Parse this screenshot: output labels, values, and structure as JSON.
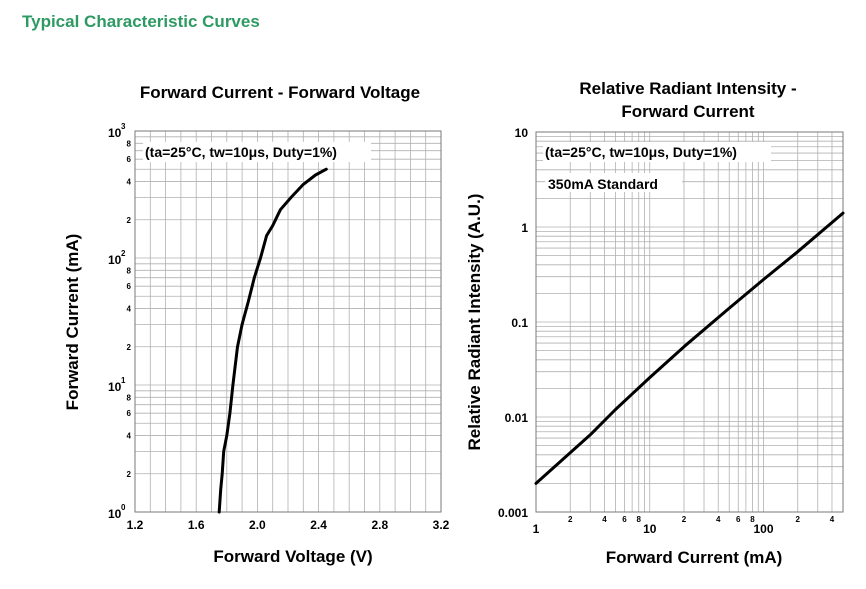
{
  "heading": "Typical Characteristic Curves",
  "colors": {
    "heading": "#2e9a63",
    "curve": "#000000",
    "grid": "#b0b0b0"
  },
  "chart_data": [
    {
      "type": "line",
      "title": "Forward Current - Forward Voltage",
      "xlabel": "Forward Voltage (V)",
      "ylabel": "Forward Current (mA)",
      "xscale": "linear",
      "yscale": "log",
      "xlim": [
        1.2,
        3.2
      ],
      "ylim": [
        1,
        1000
      ],
      "grid": true,
      "annotation": "(ta=25°C, tw=10μs, Duty=1%)",
      "xticks": [
        "1.2",
        "1.6",
        "2.0",
        "2.4",
        "2.8",
        "3.2"
      ],
      "yticks_major": [
        {
          "base": "10",
          "exp": "0"
        },
        {
          "base": "10",
          "exp": "1"
        },
        {
          "base": "10",
          "exp": "2"
        },
        {
          "base": "10",
          "exp": "3"
        }
      ],
      "yticks_minor": [
        "2",
        "4",
        "6",
        "8"
      ],
      "series": [
        {
          "x": [
            1.75,
            1.76,
            1.77,
            1.78,
            1.8,
            1.82,
            1.84,
            1.87,
            1.9,
            1.94,
            1.98,
            2.02,
            2.06,
            2.1,
            2.15,
            2.22,
            2.3,
            2.38,
            2.45
          ],
          "y": [
            1,
            1.5,
            2,
            3,
            4,
            6,
            10,
            20,
            30,
            45,
            70,
            100,
            150,
            180,
            240,
            300,
            380,
            450,
            500
          ]
        }
      ]
    },
    {
      "type": "line",
      "title": "Relative Radiant Intensity - Forward Current",
      "xlabel": "Forward Current (mA)",
      "ylabel": "Relative Radiant Intensity (A.U.)",
      "xscale": "log",
      "yscale": "log",
      "xlim": [
        1,
        500
      ],
      "ylim": [
        0.001,
        10
      ],
      "grid": true,
      "annotation": "(ta=25°C, tw=10μs, Duty=1%)",
      "annotation2": "350mA Standard",
      "xticks_major": [
        "1",
        "10",
        "100"
      ],
      "xticks_minor": [
        "2",
        "4",
        "6",
        "8"
      ],
      "yticks": [
        "10",
        "1",
        "0.1",
        "0.01",
        "0.001"
      ],
      "series": [
        {
          "x": [
            1,
            2,
            3,
            5,
            10,
            20,
            50,
            100,
            200,
            500
          ],
          "y": [
            0.002,
            0.0042,
            0.0065,
            0.012,
            0.026,
            0.055,
            0.14,
            0.28,
            0.55,
            1.4
          ]
        }
      ]
    }
  ]
}
